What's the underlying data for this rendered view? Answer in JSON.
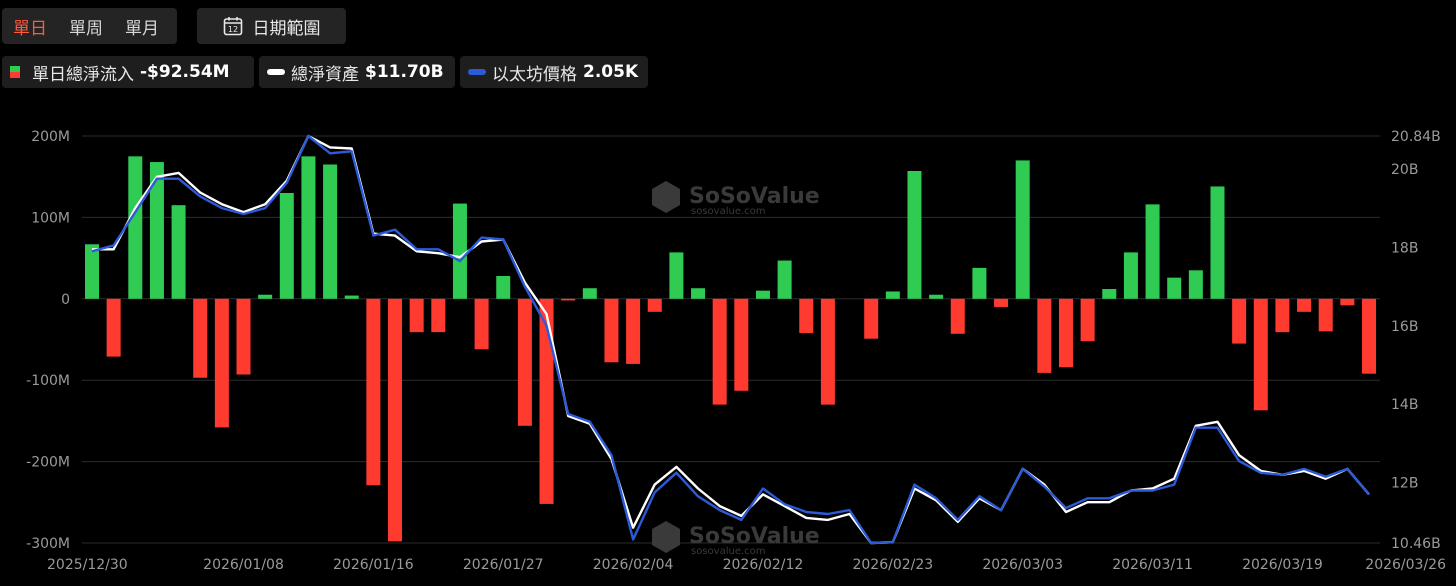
{
  "toolbar": {
    "tabs": [
      "單日",
      "單周",
      "單月"
    ],
    "active_tab": 0,
    "date_range_label": "日期範圍",
    "calendar_day": "12"
  },
  "legend": {
    "flow_label": "單日總淨流入",
    "flow_value": "-$92.54M",
    "assets_label": "總淨資產",
    "assets_value": "$11.70B",
    "price_label": "以太坊價格",
    "price_value": "2.05K"
  },
  "watermark": {
    "brand": "SoSoValue",
    "site": "sosovalue.com"
  },
  "colors": {
    "positive": "#2fcb52",
    "negative": "#ff3b30",
    "assets_line": "#ffffff",
    "price_line": "#2d5bd8"
  },
  "chart_data": {
    "type": "bar+line",
    "x_ticks": [
      "2025/12/30",
      "2026/01/08",
      "2026/01/16",
      "2026/01/27",
      "2026/02/04",
      "2026/02/12",
      "2026/02/23",
      "2026/03/03",
      "2026/03/11",
      "2026/03/19",
      "2026/03/26"
    ],
    "x_tick_index": [
      0,
      7,
      13,
      19,
      25,
      31,
      37,
      43,
      49,
      55,
      60
    ],
    "left_axis": {
      "ticks": [
        "200M",
        "100M",
        "0",
        "-100M",
        "-200M",
        "-300M"
      ],
      "tick_values": [
        200,
        100,
        0,
        -100,
        -200,
        -300
      ],
      "range": [
        -300,
        200
      ],
      "unit": "M"
    },
    "right_axis": {
      "ticks": [
        "20.84B",
        "20B",
        "18B",
        "16B",
        "14B",
        "12B",
        "10.46B"
      ],
      "tick_values": [
        20.84,
        20,
        18,
        16,
        14,
        12,
        10.46
      ],
      "range": [
        10.46,
        20.84
      ],
      "unit": "B"
    },
    "grid": true,
    "daily_net_inflow_musd": [
      67,
      -71,
      175,
      168,
      115,
      -97,
      -158,
      -93,
      5,
      130,
      175,
      165,
      4,
      -229,
      -298,
      -41,
      -41,
      117,
      -62,
      28,
      -156,
      -252,
      -2,
      13,
      -78,
      -80,
      -16,
      57,
      13,
      -130,
      -113,
      10,
      47,
      -42,
      -130,
      0,
      -49,
      9,
      157,
      5,
      -43,
      38,
      -10,
      170,
      -91,
      -84,
      -52,
      12,
      57,
      116,
      26,
      35,
      138,
      -55,
      -137,
      -41,
      -16,
      -40,
      -8,
      -92
    ],
    "total_net_assets_bn": [
      17.95,
      17.95,
      19.0,
      19.8,
      19.9,
      19.4,
      19.1,
      18.9,
      19.1,
      19.7,
      20.84,
      20.55,
      20.52,
      18.35,
      18.3,
      17.9,
      17.85,
      17.75,
      18.15,
      18.2,
      17.1,
      16.3,
      13.7,
      13.5,
      12.6,
      10.85,
      11.95,
      12.4,
      11.85,
      11.4,
      11.15,
      11.7,
      11.4,
      11.1,
      11.05,
      11.2,
      10.46,
      10.48,
      11.85,
      11.55,
      11.0,
      11.6,
      11.3,
      12.35,
      11.95,
      11.25,
      11.5,
      11.5,
      11.8,
      11.85,
      12.1,
      13.45,
      13.55,
      12.7,
      12.3,
      12.2,
      12.3,
      12.1,
      12.35,
      11.7
    ],
    "eth_price_norm": [
      17.9,
      18.05,
      18.9,
      19.75,
      19.75,
      19.3,
      19.0,
      18.85,
      19.0,
      19.65,
      20.84,
      20.4,
      20.45,
      18.3,
      18.45,
      17.95,
      17.95,
      17.65,
      18.25,
      18.2,
      17.0,
      16.0,
      13.75,
      13.55,
      12.7,
      10.55,
      11.75,
      12.25,
      11.65,
      11.3,
      11.05,
      11.85,
      11.45,
      11.25,
      11.2,
      11.3,
      10.46,
      10.48,
      11.95,
      11.6,
      11.05,
      11.65,
      11.3,
      12.35,
      11.9,
      11.35,
      11.6,
      11.6,
      11.8,
      11.8,
      11.95,
      13.4,
      13.4,
      12.55,
      12.25,
      12.2,
      12.35,
      12.15,
      12.35,
      11.7
    ]
  }
}
